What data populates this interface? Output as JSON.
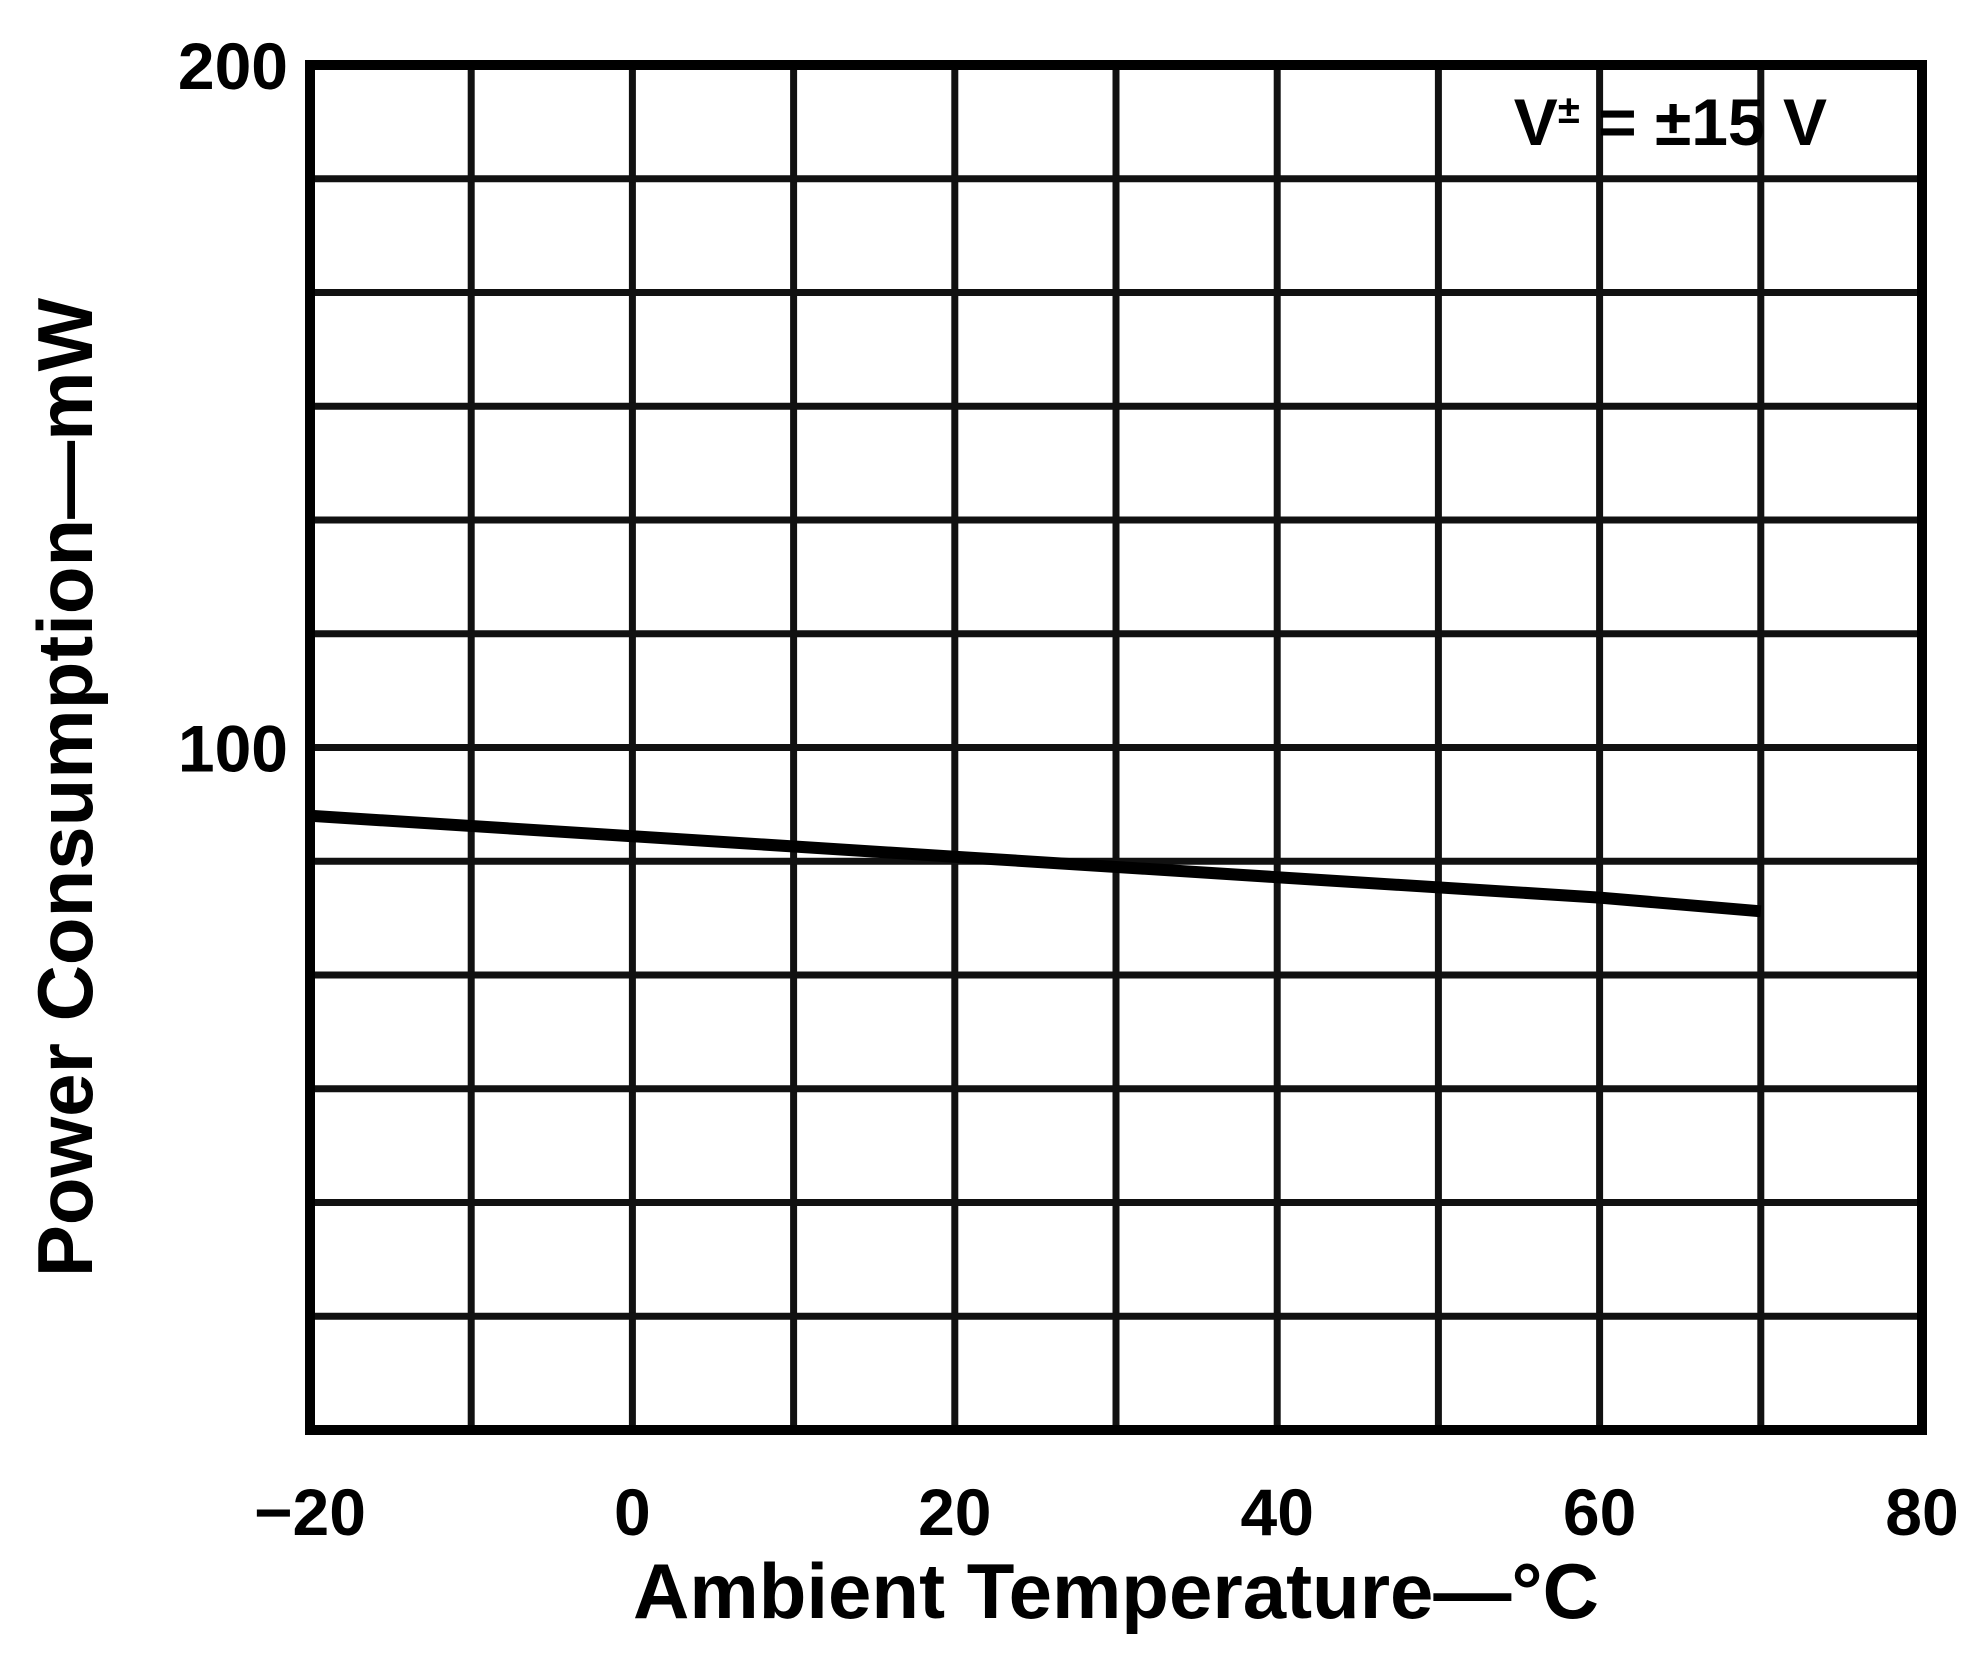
{
  "chart_data": {
    "type": "line",
    "title": "",
    "xlabel": "Ambient Temperature—°C",
    "ylabel": "Power Consumption—mW",
    "xlim": [
      -20,
      80
    ],
    "ylim": [
      0,
      200
    ],
    "x_ticks": [
      {
        "value": -20,
        "label": "−20"
      },
      {
        "value": 0,
        "label": "0"
      },
      {
        "value": 20,
        "label": "20"
      },
      {
        "value": 40,
        "label": "40"
      },
      {
        "value": 60,
        "label": "60"
      },
      {
        "value": 80,
        "label": "80"
      }
    ],
    "y_ticks": [
      {
        "value": 100,
        "label": "100"
      },
      {
        "value": 200,
        "label": "200"
      }
    ],
    "x_grid_step": 10,
    "y_grid_step": 16.67,
    "grid": true,
    "legend": "none",
    "annotation": {
      "base": "V",
      "sup": "±",
      "rest": " = ±15 V",
      "placement": "top-right"
    },
    "series": [
      {
        "x": [
          -20,
          0,
          20,
          40,
          60,
          70
        ],
        "y": [
          90,
          87,
          84,
          81,
          78,
          76
        ]
      }
    ]
  }
}
